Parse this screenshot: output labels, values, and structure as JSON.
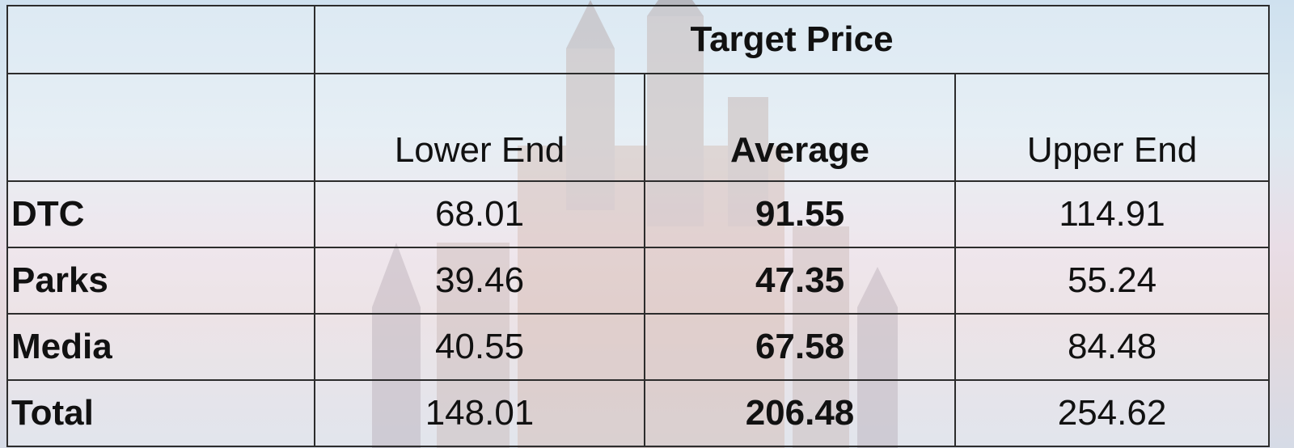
{
  "table": {
    "title": "Target Price",
    "columns": [
      "Lower End",
      "Average",
      "Upper End"
    ],
    "rows": [
      {
        "label": "DTC",
        "lower": "68.01",
        "average": "91.55",
        "upper": "114.91"
      },
      {
        "label": "Parks",
        "lower": "39.46",
        "average": "47.35",
        "upper": "55.24"
      },
      {
        "label": "Media",
        "lower": "40.55",
        "average": "67.58",
        "upper": "84.48"
      },
      {
        "label": "Total",
        "lower": "148.01",
        "average": "206.48",
        "upper": "254.62"
      }
    ]
  },
  "colors": {
    "header_fill": "#9dc3e6",
    "border": "#2c2c2c"
  }
}
